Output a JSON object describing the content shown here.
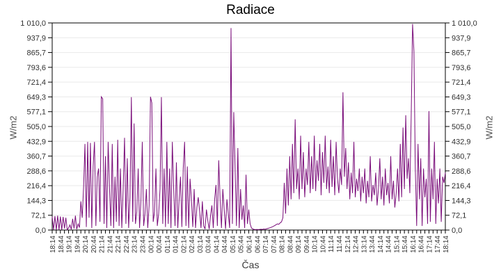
{
  "title": "Radiace",
  "x_axis": {
    "title": "Čas",
    "ticks": [
      "18:14",
      "18:44",
      "19:14",
      "19:44",
      "20:14",
      "20:44",
      "21:14",
      "21:44",
      "22:14",
      "22:44",
      "23:14",
      "23:44",
      "00:14",
      "00:44",
      "01:14",
      "01:44",
      "02:14",
      "02:44",
      "03:14",
      "03:44",
      "04:14",
      "04:44",
      "05:14",
      "05:44",
      "06:14",
      "06:44",
      "07:14",
      "07:44",
      "08:14",
      "08:44",
      "09:14",
      "09:44",
      "10:14",
      "10:44",
      "11:14",
      "11:44",
      "12:14",
      "12:44",
      "13:14",
      "13:44",
      "14:14",
      "14:44",
      "15:14",
      "15:44",
      "16:14",
      "16:44",
      "17:14",
      "17:44",
      "18:14"
    ],
    "minor_tick_minutes": 15,
    "label_interval_minutes": 30
  },
  "y_axis": {
    "title": "W/m2",
    "title_right": "W/m2",
    "ticks": [
      "0,0",
      "72,1",
      "144,3",
      "216,4",
      "288,6",
      "360,7",
      "432,9",
      "505,0",
      "577,1",
      "649,3",
      "721,4",
      "793,6",
      "865,7",
      "937,9",
      "1 010,0"
    ],
    "min": 0,
    "max": 1010
  },
  "colors": {
    "series": "#7a0d7a",
    "grid": "#e9e9e9",
    "frame": "#000000",
    "tick_text": "#303030",
    "axis_title_text": "#4d4d4d"
  },
  "chart_data": {
    "type": "line",
    "title": "Radiace",
    "xlabel": "Čas",
    "ylabel": "W/m2",
    "ylabel_right": "W/m2",
    "x_start": "18:14",
    "x_end": "18:14",
    "sample_interval_minutes": 5,
    "ylim": [
      0,
      1010
    ],
    "y_tick_step": 72.1,
    "grid": "horizontal-light-gray",
    "legend": "none",
    "series_color": "#7a0d7a",
    "peaks": [
      {
        "time": "18:20",
        "value": 70
      },
      {
        "time": "20:20",
        "value": 430
      },
      {
        "time": "21:14",
        "value": 650
      },
      {
        "time": "23:04",
        "value": 648
      },
      {
        "time": "23:19",
        "value": 520
      },
      {
        "time": "00:17",
        "value": 650
      },
      {
        "time": "00:57",
        "value": 648
      },
      {
        "time": "01:34",
        "value": 430
      },
      {
        "time": "02:19",
        "value": 430
      },
      {
        "time": "05:09",
        "value": 985
      },
      {
        "time": "05:19",
        "value": 575
      },
      {
        "time": "09:04",
        "value": 540
      },
      {
        "time": "10:14",
        "value": 460
      },
      {
        "time": "11:14",
        "value": 440
      },
      {
        "time": "12:00",
        "value": 672
      },
      {
        "time": "16:14",
        "value": 1005
      },
      {
        "time": "16:19",
        "value": 870
      },
      {
        "time": "17:14",
        "value": 580
      }
    ],
    "values": [
      65,
      2,
      68,
      1,
      70,
      2,
      66,
      1,
      64,
      8,
      60,
      2,
      10,
      25,
      3,
      55,
      8,
      70,
      4,
      30,
      12,
      140,
      60,
      210,
      420,
      15,
      430,
      60,
      425,
      10,
      310,
      430,
      20,
      260,
      300,
      40,
      650,
      640,
      30,
      360,
      10,
      430,
      200,
      20,
      420,
      10,
      260,
      40,
      440,
      20,
      300,
      10,
      200,
      450,
      30,
      350,
      10,
      160,
      648,
      40,
      520,
      30,
      90,
      300,
      10,
      140,
      430,
      20,
      80,
      200,
      10,
      120,
      650,
      620,
      40,
      90,
      300,
      20,
      80,
      200,
      648,
      30,
      300,
      15,
      430,
      30,
      300,
      10,
      430,
      200,
      20,
      330,
      10,
      150,
      260,
      15,
      300,
      430,
      20,
      310,
      10,
      250,
      150,
      15,
      200,
      10,
      110,
      160,
      90,
      10,
      140,
      20,
      5,
      100,
      45,
      5,
      70,
      120,
      10,
      150,
      220,
      20,
      340,
      150,
      10,
      200,
      100,
      5,
      150,
      80,
      10,
      985,
      30,
      575,
      300,
      20,
      400,
      10,
      200,
      50,
      120,
      10,
      270,
      30,
      100,
      30,
      10,
      5,
      3,
      2,
      3,
      2,
      3,
      4,
      3,
      5,
      4,
      6,
      8,
      10,
      12,
      15,
      18,
      22,
      26,
      30,
      28,
      35,
      40,
      60,
      230,
      80,
      300,
      120,
      360,
      150,
      420,
      180,
      540,
      200,
      300,
      150,
      460,
      200,
      380,
      160,
      300,
      220,
      430,
      180,
      360,
      200,
      460,
      190,
      340,
      240,
      420,
      170,
      380,
      230,
      460,
      200,
      310,
      180,
      440,
      210,
      360,
      170,
      430,
      250,
      180,
      300,
      220,
      672,
      260,
      400,
      200,
      330,
      150,
      280,
      180,
      430,
      160,
      250,
      190,
      300,
      140,
      260,
      180,
      300,
      130,
      240,
      160,
      360,
      140,
      220,
      170,
      280,
      120,
      200,
      350,
      150,
      260,
      120,
      300,
      170,
      230,
      130,
      360,
      150,
      240,
      110,
      180,
      300,
      140,
      420,
      160,
      500,
      200,
      560,
      250,
      350,
      180,
      560,
      1005,
      870,
      300,
      20,
      420,
      150,
      350,
      20,
      300,
      160,
      250,
      30,
      580,
      40,
      300,
      150,
      430,
      30,
      250,
      130,
      300,
      40,
      260,
      230,
      280
    ]
  }
}
